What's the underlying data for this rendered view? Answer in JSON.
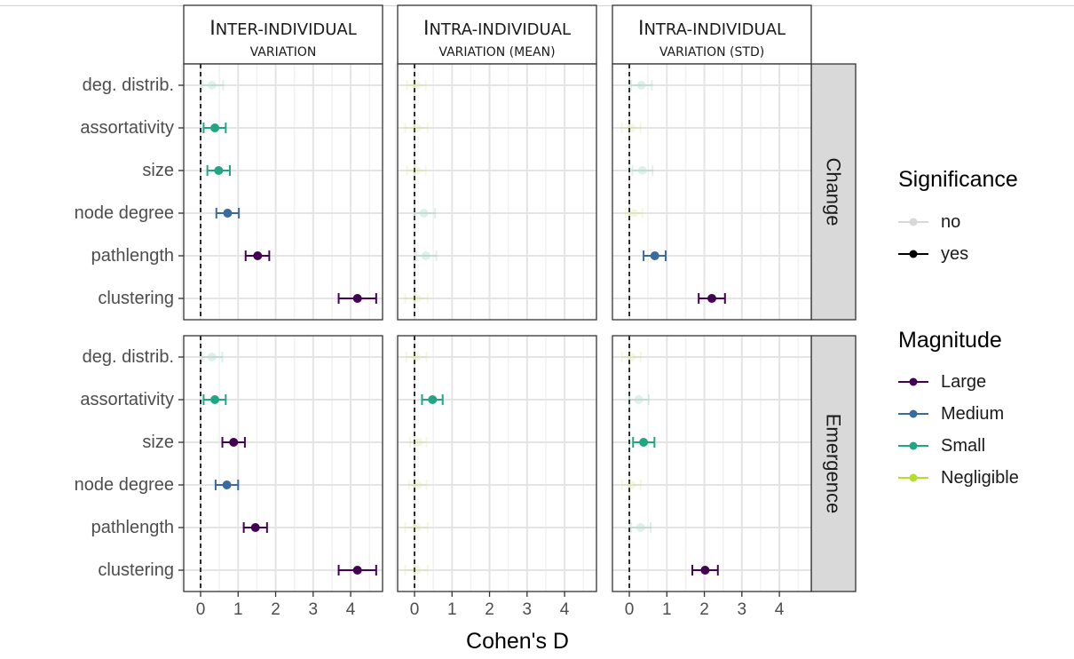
{
  "chart_data": {
    "type": "scatter",
    "xlabel": "Cohen's D",
    "x_ticks": [
      0,
      1,
      2,
      3,
      4
    ],
    "xlim": [
      -0.45,
      4.85
    ],
    "categories": [
      "deg. distrib.",
      "assortativity",
      "size",
      "node degree",
      "pathlength",
      "clustering"
    ],
    "columns": [
      {
        "main": "Inter-individual",
        "sub": "variation"
      },
      {
        "main": "Intra-individual",
        "sub": "variation (mean)"
      },
      {
        "main": "Intra-individual",
        "sub": "variation (std)"
      }
    ],
    "rows": [
      "Change",
      "Emergence"
    ],
    "legend": {
      "significance_title": "Significance",
      "significance": [
        {
          "label": "no",
          "color": "#cccccc"
        },
        {
          "label": "yes",
          "color": "#000000"
        }
      ],
      "magnitude_title": "Magnitude",
      "magnitude": [
        {
          "label": "Large",
          "color": "#440154"
        },
        {
          "label": "Medium",
          "color": "#3b6aa0"
        },
        {
          "label": "Small",
          "color": "#21a585"
        },
        {
          "label": "Negligible",
          "color": "#b5de2b"
        }
      ]
    },
    "panels": [
      {
        "row": 0,
        "col": 0,
        "points": [
          {
            "category": "deg. distrib.",
            "x": 0.3,
            "lo": 0.05,
            "hi": 0.6,
            "magnitude": "Small",
            "significant": false
          },
          {
            "category": "assortativity",
            "x": 0.38,
            "lo": 0.08,
            "hi": 0.67,
            "magnitude": "Small",
            "significant": true
          },
          {
            "category": "size",
            "x": 0.48,
            "lo": 0.18,
            "hi": 0.78,
            "magnitude": "Small",
            "significant": true
          },
          {
            "category": "node degree",
            "x": 0.72,
            "lo": 0.42,
            "hi": 1.02,
            "magnitude": "Medium",
            "significant": true
          },
          {
            "category": "pathlength",
            "x": 1.52,
            "lo": 1.2,
            "hi": 1.83,
            "magnitude": "Large",
            "significant": true
          },
          {
            "category": "clustering",
            "x": 4.18,
            "lo": 3.68,
            "hi": 4.68,
            "magnitude": "Large",
            "significant": true
          }
        ]
      },
      {
        "row": 0,
        "col": 1,
        "points": [
          {
            "category": "deg. distrib.",
            "x": 0.05,
            "lo": -0.2,
            "hi": 0.3,
            "magnitude": "Negligible",
            "significant": false
          },
          {
            "category": "assortativity",
            "x": 0.05,
            "lo": -0.25,
            "hi": 0.35,
            "magnitude": "Negligible",
            "significant": false
          },
          {
            "category": "size",
            "x": 0.05,
            "lo": -0.2,
            "hi": 0.3,
            "magnitude": "Negligible",
            "significant": false
          },
          {
            "category": "node degree",
            "x": 0.25,
            "lo": 0.0,
            "hi": 0.55,
            "magnitude": "Small",
            "significant": false
          },
          {
            "category": "pathlength",
            "x": 0.3,
            "lo": 0.05,
            "hi": 0.58,
            "magnitude": "Small",
            "significant": false
          },
          {
            "category": "clustering",
            "x": 0.05,
            "lo": -0.25,
            "hi": 0.35,
            "magnitude": "Negligible",
            "significant": false
          }
        ]
      },
      {
        "row": 0,
        "col": 2,
        "points": [
          {
            "category": "deg. distrib.",
            "x": 0.32,
            "lo": 0.05,
            "hi": 0.6,
            "magnitude": "Small",
            "significant": false
          },
          {
            "category": "assortativity",
            "x": 0.05,
            "lo": -0.2,
            "hi": 0.3,
            "magnitude": "Negligible",
            "significant": false
          },
          {
            "category": "size",
            "x": 0.35,
            "lo": 0.08,
            "hi": 0.62,
            "magnitude": "Small",
            "significant": false
          },
          {
            "category": "node degree",
            "x": 0.12,
            "lo": -0.1,
            "hi": 0.35,
            "magnitude": "Negligible",
            "significant": false
          },
          {
            "category": "pathlength",
            "x": 0.68,
            "lo": 0.38,
            "hi": 0.97,
            "magnitude": "Medium",
            "significant": true
          },
          {
            "category": "clustering",
            "x": 2.2,
            "lo": 1.85,
            "hi": 2.55,
            "magnitude": "Large",
            "significant": true
          }
        ]
      },
      {
        "row": 1,
        "col": 0,
        "points": [
          {
            "category": "deg. distrib.",
            "x": 0.3,
            "lo": 0.05,
            "hi": 0.58,
            "magnitude": "Small",
            "significant": false
          },
          {
            "category": "assortativity",
            "x": 0.38,
            "lo": 0.08,
            "hi": 0.67,
            "magnitude": "Small",
            "significant": true
          },
          {
            "category": "size",
            "x": 0.88,
            "lo": 0.58,
            "hi": 1.18,
            "magnitude": "Large",
            "significant": true
          },
          {
            "category": "node degree",
            "x": 0.7,
            "lo": 0.4,
            "hi": 1.0,
            "magnitude": "Medium",
            "significant": true
          },
          {
            "category": "pathlength",
            "x": 1.46,
            "lo": 1.15,
            "hi": 1.77,
            "magnitude": "Large",
            "significant": true
          },
          {
            "category": "clustering",
            "x": 4.18,
            "lo": 3.68,
            "hi": 4.68,
            "magnitude": "Large",
            "significant": true
          }
        ]
      },
      {
        "row": 1,
        "col": 1,
        "points": [
          {
            "category": "deg. distrib.",
            "x": 0.05,
            "lo": -0.22,
            "hi": 0.32,
            "magnitude": "Negligible",
            "significant": false
          },
          {
            "category": "assortativity",
            "x": 0.48,
            "lo": 0.2,
            "hi": 0.75,
            "magnitude": "Small",
            "significant": true
          },
          {
            "category": "size",
            "x": 0.1,
            "lo": -0.12,
            "hi": 0.32,
            "magnitude": "Negligible",
            "significant": false
          },
          {
            "category": "node degree",
            "x": 0.08,
            "lo": -0.15,
            "hi": 0.32,
            "magnitude": "Negligible",
            "significant": false
          },
          {
            "category": "pathlength",
            "x": 0.05,
            "lo": -0.25,
            "hi": 0.35,
            "magnitude": "Negligible",
            "significant": false
          },
          {
            "category": "clustering",
            "x": 0.05,
            "lo": -0.25,
            "hi": 0.35,
            "magnitude": "Negligible",
            "significant": false
          }
        ]
      },
      {
        "row": 1,
        "col": 2,
        "points": [
          {
            "category": "deg. distrib.",
            "x": 0.05,
            "lo": -0.2,
            "hi": 0.3,
            "magnitude": "Negligible",
            "significant": false
          },
          {
            "category": "assortativity",
            "x": 0.25,
            "lo": 0.0,
            "hi": 0.52,
            "magnitude": "Small",
            "significant": false
          },
          {
            "category": "size",
            "x": 0.38,
            "lo": 0.1,
            "hi": 0.67,
            "magnitude": "Small",
            "significant": true
          },
          {
            "category": "node degree",
            "x": 0.05,
            "lo": -0.2,
            "hi": 0.3,
            "magnitude": "Negligible",
            "significant": false
          },
          {
            "category": "pathlength",
            "x": 0.3,
            "lo": 0.05,
            "hi": 0.57,
            "magnitude": "Small",
            "significant": false
          },
          {
            "category": "clustering",
            "x": 2.02,
            "lo": 1.68,
            "hi": 2.36,
            "magnitude": "Large",
            "significant": true
          }
        ]
      }
    ]
  }
}
